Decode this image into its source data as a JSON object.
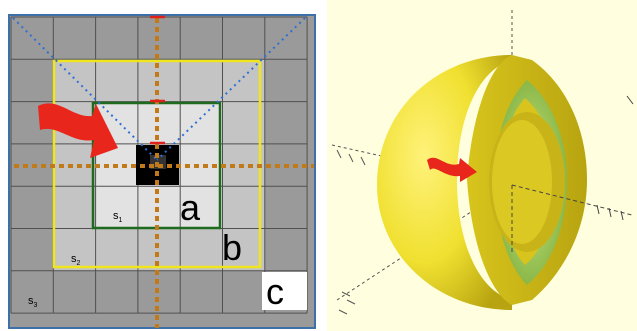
{
  "left_panel": {
    "labels": {
      "a": "a",
      "b": "b",
      "c": "c",
      "s1": "s",
      "s1_sub": "1",
      "s2": "s",
      "s2_sub": "2",
      "s3": "s",
      "s3_sub": "3"
    },
    "colors": {
      "grid_dark": "#9a9a9a",
      "grid_mid": "#c4c4c4",
      "grid_light": "#e2e2e2",
      "grid_line": "#505050",
      "outer_frame": "#3d6fa8",
      "square_c": "#ffffff",
      "square_b": "#f0e61e",
      "square_a": "#1e6a1e",
      "center_cell": "#000000",
      "orange_axis": "#c07a1a",
      "blue_rays": "#2f6fd6",
      "red_marks": "#e0201a",
      "arrow": "#e8261c"
    },
    "icons": [
      "red-arrow-icon"
    ]
  },
  "right_panel": {
    "colors": {
      "background": "#ffffe0",
      "shell_yellow": "#f0e030",
      "shell_shadow": "#b8a410",
      "inner_green": "#9ccc50",
      "axis": "#333333",
      "arrow": "#e8261c"
    },
    "icons": [
      "red-arrow-icon"
    ]
  }
}
